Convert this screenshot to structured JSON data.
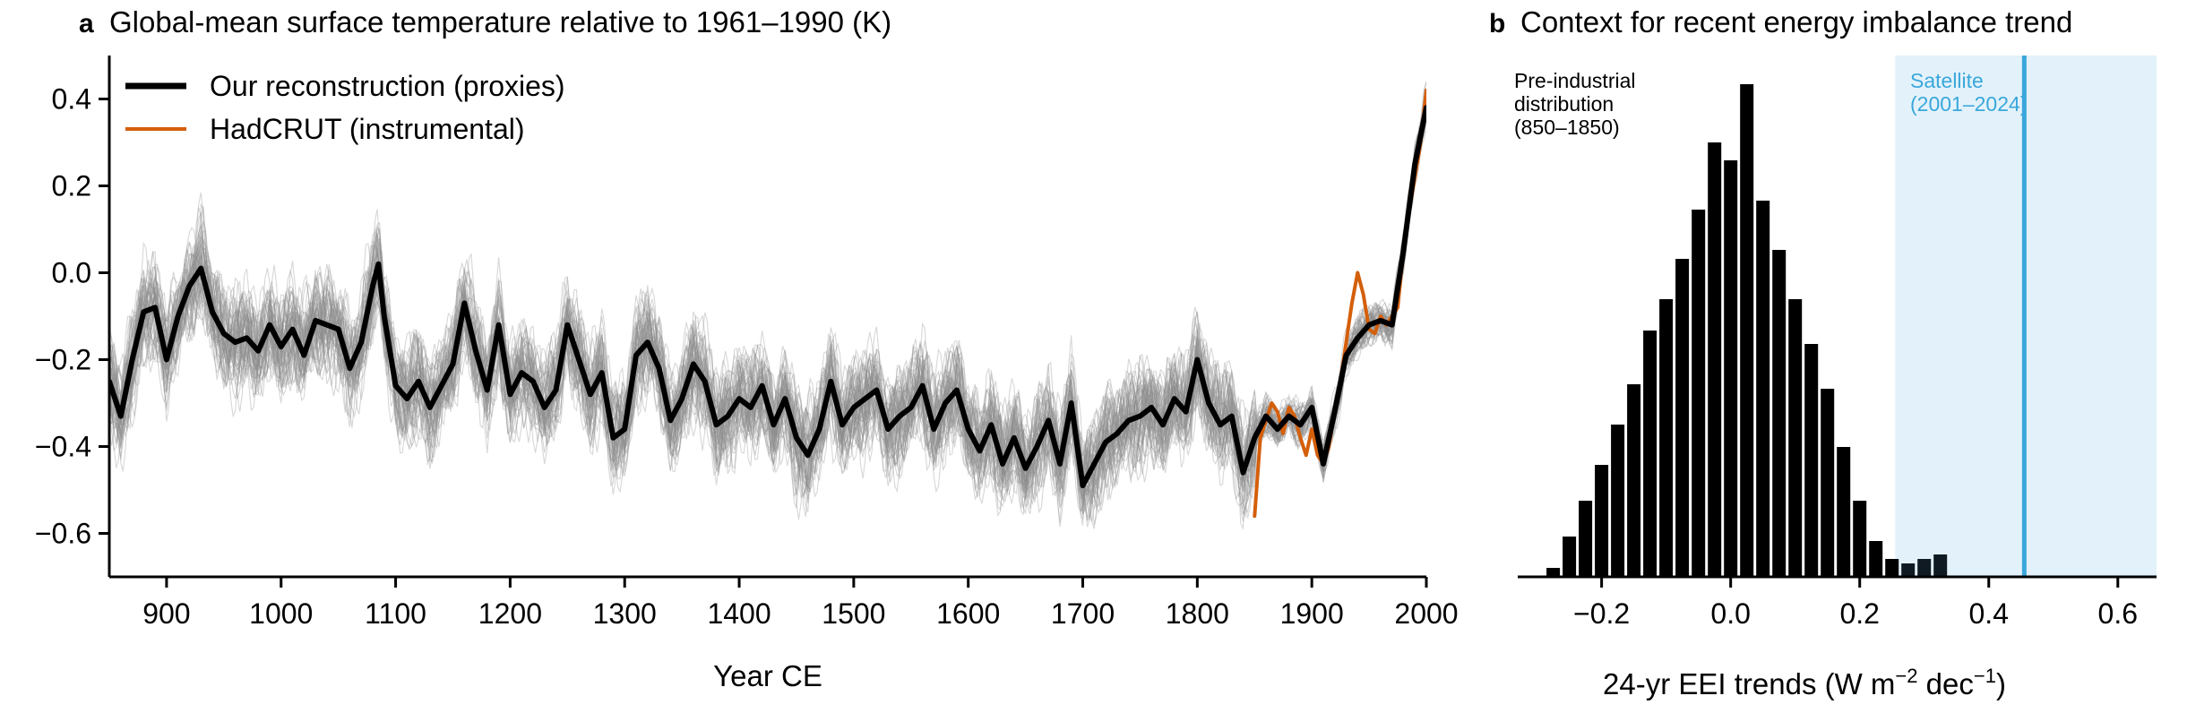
{
  "chart_data": [
    {
      "type": "line",
      "panel_letter": "a",
      "title": "Global-mean surface temperature relative to 1961–1990 (K)",
      "xlabel": "Year CE",
      "ylabel": "",
      "xlim": [
        850,
        2000
      ],
      "ylim": [
        -0.7,
        0.5
      ],
      "x_ticks": [
        900,
        1000,
        1100,
        1200,
        1300,
        1400,
        1500,
        1600,
        1700,
        1800,
        1900,
        2000
      ],
      "y_ticks": [
        -0.6,
        -0.4,
        -0.2,
        0.0,
        0.2,
        0.4
      ],
      "y_tick_labels": [
        "−0.6",
        "−0.4",
        "−0.2",
        "0.0",
        "0.2",
        "0.4"
      ],
      "grid": false,
      "legend_position": "top-left",
      "ensemble": {
        "members": 60,
        "color": "#8c8c8c",
        "opacity": 0.35
      },
      "series": [
        {
          "name": "Our reconstruction (proxies)",
          "color": "#000000",
          "x": [
            850,
            860,
            870,
            880,
            890,
            900,
            910,
            920,
            930,
            940,
            950,
            960,
            970,
            980,
            990,
            1000,
            1010,
            1020,
            1030,
            1040,
            1050,
            1060,
            1070,
            1080,
            1085,
            1090,
            1100,
            1110,
            1120,
            1130,
            1140,
            1150,
            1160,
            1170,
            1180,
            1190,
            1200,
            1210,
            1220,
            1230,
            1240,
            1250,
            1260,
            1270,
            1280,
            1290,
            1300,
            1310,
            1320,
            1330,
            1340,
            1350,
            1360,
            1370,
            1380,
            1390,
            1400,
            1410,
            1420,
            1430,
            1440,
            1450,
            1460,
            1470,
            1480,
            1490,
            1500,
            1510,
            1520,
            1530,
            1540,
            1550,
            1560,
            1570,
            1580,
            1590,
            1600,
            1610,
            1620,
            1630,
            1640,
            1650,
            1660,
            1670,
            1680,
            1690,
            1700,
            1710,
            1720,
            1730,
            1740,
            1750,
            1760,
            1770,
            1780,
            1790,
            1800,
            1810,
            1820,
            1830,
            1840,
            1850,
            1860,
            1870,
            1880,
            1890,
            1900,
            1910,
            1920,
            1930,
            1940,
            1950,
            1960,
            1970,
            1980,
            1990,
            2000
          ],
          "y": [
            -0.25,
            -0.33,
            -0.2,
            -0.09,
            -0.08,
            -0.2,
            -0.1,
            -0.03,
            0.01,
            -0.09,
            -0.14,
            -0.16,
            -0.15,
            -0.18,
            -0.12,
            -0.17,
            -0.13,
            -0.19,
            -0.11,
            -0.12,
            -0.13,
            -0.22,
            -0.16,
            -0.03,
            0.02,
            -0.1,
            -0.26,
            -0.29,
            -0.25,
            -0.31,
            -0.26,
            -0.21,
            -0.07,
            -0.18,
            -0.27,
            -0.12,
            -0.28,
            -0.23,
            -0.25,
            -0.31,
            -0.27,
            -0.12,
            -0.2,
            -0.28,
            -0.23,
            -0.38,
            -0.36,
            -0.19,
            -0.16,
            -0.22,
            -0.34,
            -0.29,
            -0.21,
            -0.25,
            -0.35,
            -0.33,
            -0.29,
            -0.31,
            -0.26,
            -0.35,
            -0.29,
            -0.38,
            -0.42,
            -0.36,
            -0.25,
            -0.35,
            -0.31,
            -0.29,
            -0.27,
            -0.36,
            -0.33,
            -0.31,
            -0.26,
            -0.36,
            -0.3,
            -0.27,
            -0.36,
            -0.41,
            -0.35,
            -0.44,
            -0.38,
            -0.45,
            -0.4,
            -0.34,
            -0.44,
            -0.3,
            -0.49,
            -0.44,
            -0.39,
            -0.37,
            -0.34,
            -0.33,
            -0.31,
            -0.35,
            -0.29,
            -0.32,
            -0.2,
            -0.3,
            -0.35,
            -0.33,
            -0.46,
            -0.38,
            -0.33,
            -0.36,
            -0.33,
            -0.35,
            -0.31,
            -0.44,
            -0.32,
            -0.19,
            -0.15,
            -0.12,
            -0.11,
            -0.12,
            0.05,
            0.25,
            0.38
          ]
        },
        {
          "name": "HadCRUT (instrumental)",
          "color": "#d45f0a",
          "x": [
            1850,
            1855,
            1860,
            1865,
            1870,
            1875,
            1880,
            1885,
            1890,
            1895,
            1900,
            1905,
            1910,
            1915,
            1920,
            1925,
            1930,
            1935,
            1940,
            1945,
            1950,
            1955,
            1960,
            1965,
            1970,
            1975,
            1980,
            1985,
            1990,
            1995,
            2000
          ],
          "y": [
            -0.56,
            -0.38,
            -0.34,
            -0.3,
            -0.32,
            -0.37,
            -0.31,
            -0.33,
            -0.38,
            -0.42,
            -0.36,
            -0.42,
            -0.44,
            -0.4,
            -0.32,
            -0.25,
            -0.16,
            -0.07,
            0.0,
            -0.05,
            -0.13,
            -0.14,
            -0.1,
            -0.12,
            -0.1,
            -0.08,
            0.05,
            0.14,
            0.22,
            0.3,
            0.42
          ]
        }
      ]
    },
    {
      "type": "bar",
      "panel_letter": "b",
      "title": "Context for recent energy imbalance trend",
      "xlabel": "24-yr EEI trends (W m",
      "xlabel_sup1": "−2",
      "xlabel_mid": " dec",
      "xlabel_sup2": "−1",
      "xlabel_end": ")",
      "ylabel": "",
      "xlim": [
        -0.33,
        0.66
      ],
      "x_ticks": [
        -0.2,
        0.0,
        0.2,
        0.4,
        0.6
      ],
      "x_tick_labels": [
        "−0.2",
        "0.0",
        "0.2",
        "0.4",
        "0.6"
      ],
      "bin_width": 0.025,
      "bins": [
        -0.275,
        -0.25,
        -0.225,
        -0.2,
        -0.175,
        -0.15,
        -0.125,
        -0.1,
        -0.075,
        -0.05,
        -0.025,
        0.0,
        0.025,
        0.05,
        0.075,
        0.1,
        0.125,
        0.15,
        0.175,
        0.2,
        0.225,
        0.25,
        0.275,
        0.3,
        0.325,
        0.35
      ],
      "counts": [
        2,
        9,
        17,
        25,
        34,
        43,
        55,
        62,
        71,
        82,
        97,
        93,
        110,
        84,
        73,
        62,
        52,
        42,
        29,
        17,
        8,
        4,
        3,
        4,
        5,
        0
      ],
      "bar_color": "#000000",
      "satellite_value": 0.455,
      "satellite_range": [
        0.255,
        0.66
      ],
      "satellite_color": "#3aa7db",
      "shade_color": "#e3f2fa",
      "annotation_preindustrial": [
        "Pre-industrial",
        "distribution",
        "(850–1850)"
      ],
      "annotation_satellite": [
        "Satellite",
        "(2001–2024)"
      ],
      "grid": false
    }
  ]
}
